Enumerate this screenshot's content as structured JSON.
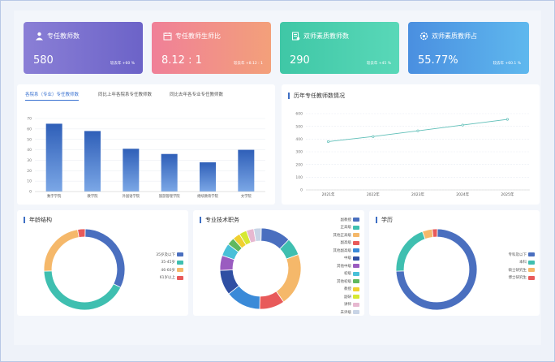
{
  "cards": [
    {
      "title": "专任教师数",
      "value": "580",
      "yoy": "较去年 +60 %",
      "icon": "teacher-icon",
      "gradient": [
        "#8a7fd6",
        "#6c63c8"
      ]
    },
    {
      "title": "专任教师生师比",
      "value": "8.12 : 1",
      "yoy": "较去年 +8.12 : 1",
      "icon": "calendar-icon",
      "gradient": [
        "#f08098",
        "#f3a07a"
      ]
    },
    {
      "title": "双师素质教师数",
      "value": "290",
      "yoy": "较去年 +45 %",
      "icon": "certificate-icon",
      "gradient": [
        "#3fc7a6",
        "#59d8b8"
      ]
    },
    {
      "title": "双师素质教师占",
      "value": "55.77%",
      "yoy": "较去年 +60.1 %",
      "icon": "gear-icon",
      "gradient": [
        "#4a8fe0",
        "#5fb8ee"
      ]
    }
  ],
  "tabs": [
    "各院系（专业）专任教师数",
    "同比上年各院系专任教师数",
    "同比去年各专业专任教师数"
  ],
  "bar_chart": {
    "chart_data": {
      "type": "bar",
      "categories": [
        "数字学院",
        "教学院",
        "外国语学院",
        "旅游管理学院",
        "继续教育学院",
        "文学院"
      ],
      "values": [
        65,
        58,
        41,
        36,
        28,
        40
      ],
      "ylim": [
        0,
        70
      ],
      "yticks": [
        "0",
        "10",
        "20",
        "30",
        "40",
        "50",
        "60",
        "70"
      ]
    }
  },
  "line_panel_title": "历年专任教师数情况",
  "line_chart": {
    "chart_data": {
      "type": "line",
      "x": [
        "2021年",
        "2022年",
        "2023年",
        "2024年",
        "2025年"
      ],
      "values": [
        380,
        420,
        465,
        510,
        555
      ],
      "ylim": [
        0,
        600
      ],
      "yticks": [
        "0",
        "100",
        "200",
        "300",
        "400",
        "500",
        "600"
      ]
    }
  },
  "age_panel": {
    "title": "年龄结构",
    "chart_data": {
      "type": "pie",
      "labels": [
        "35岁及以下",
        "35-45岁",
        "46-60岁",
        "61岁以上"
      ],
      "values": [
        32,
        42,
        23,
        3
      ],
      "colors": [
        "#4a6fbf",
        "#3fbfb0",
        "#f5b86a",
        "#e85a5a"
      ]
    }
  },
  "tech_panel": {
    "title": "专业技术职务",
    "chart_data": {
      "type": "pie",
      "labels": [
        "副教授",
        "正高级",
        "其他正高级",
        "副高级",
        "其他副高级",
        "中级",
        "其他中级",
        "初级",
        "其他初级",
        "教授",
        "副研",
        "讲师",
        "未评级"
      ],
      "values": [
        12,
        7,
        21,
        10,
        14,
        10,
        6,
        5,
        3,
        3,
        3,
        3,
        3
      ],
      "colors": [
        "#4a6fbf",
        "#3fbfb0",
        "#f5b86a",
        "#e85a5a",
        "#3a8ad8",
        "#2f4fa3",
        "#9a5cc0",
        "#49c0d8",
        "#5fb85f",
        "#f0d030",
        "#d6e832",
        "#e7b8d0",
        "#c8d4e6"
      ]
    }
  },
  "edu_panel": {
    "title": "学历",
    "chart_data": {
      "type": "pie",
      "labels": [
        "专科及以下",
        "本科",
        "硕士研究生",
        "博士研究生"
      ],
      "values": [
        74,
        20,
        4,
        2
      ],
      "colors": [
        "#4a6fbf",
        "#3fbfb0",
        "#f5b86a",
        "#e85a5a"
      ]
    }
  }
}
